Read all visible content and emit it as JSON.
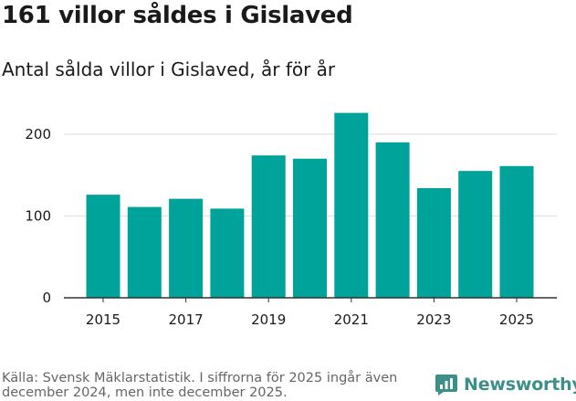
{
  "header": {
    "title": "161 villor såldes i Gislaved",
    "subtitle": "Antal sålda villor i Gislaved, år för år"
  },
  "footer": {
    "source": "Källa: Svensk Mäklarstatistik. I siffrorna för 2025 ingår även december 2024, men inte december 2025.",
    "brand": "Newsworthy"
  },
  "colors": {
    "bar": "#00a39a",
    "grid": "#dddddd",
    "axis": "#333333",
    "brand": "#3d8f8a"
  },
  "chart_data": {
    "type": "bar",
    "categories": [
      "2015",
      "2016",
      "2017",
      "2018",
      "2019",
      "2020",
      "2021",
      "2022",
      "2023",
      "2024",
      "2025"
    ],
    "values": [
      126,
      111,
      121,
      109,
      174,
      170,
      226,
      190,
      134,
      155,
      161
    ],
    "x_tick_labels": [
      "2015",
      "2017",
      "2019",
      "2021",
      "2023",
      "2025"
    ],
    "y_ticks": [
      0,
      100,
      200
    ],
    "ylim": [
      0,
      230
    ],
    "grid": true,
    "title": "161 villor såldes i Gislaved",
    "subtitle": "Antal sålda villor i Gislaved, år för år",
    "xlabel": "",
    "ylabel": ""
  }
}
